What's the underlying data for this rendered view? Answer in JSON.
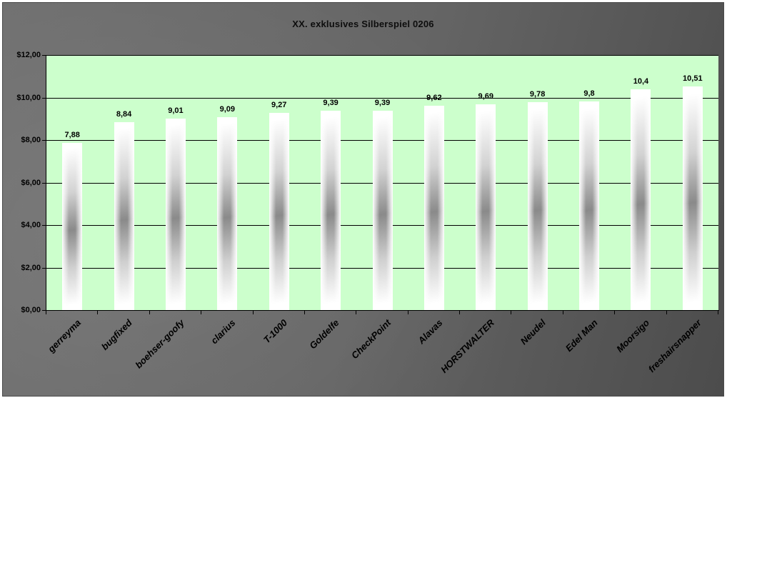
{
  "page": {
    "background": "#ffffff"
  },
  "chart_data": {
    "type": "bar",
    "title": "XX. exklusives Silberspiel 0206",
    "categories": [
      "gerreyma",
      "bugfixed",
      "boehser-goofy",
      "clarius",
      "T-1000",
      "Goldelfe",
      "CheckPoint",
      "Alavas",
      "HORSTWALTER",
      "Neudel",
      "Edel Man",
      "Moorsigo",
      "freshairsnapper"
    ],
    "values": [
      7.88,
      8.84,
      9.01,
      9.09,
      9.27,
      9.39,
      9.39,
      9.62,
      9.69,
      9.78,
      9.8,
      10.4,
      10.51
    ],
    "value_labels": [
      "7,88",
      "8,84",
      "9,01",
      "9,09",
      "9,27",
      "9,39",
      "9,39",
      "9,62",
      "9,69",
      "9,78",
      "9,8",
      "10,4",
      "10,51"
    ],
    "xlabel": "",
    "ylabel": "",
    "ylim": [
      0,
      12
    ],
    "ytick_step": 2,
    "yticks": [
      {
        "value": 0,
        "label": "$0,00"
      },
      {
        "value": 2,
        "label": "$2,00"
      },
      {
        "value": 4,
        "label": "$4,00"
      },
      {
        "value": 6,
        "label": "$6,00"
      },
      {
        "value": 8,
        "label": "$8,00"
      },
      {
        "value": 10,
        "label": "$10,00"
      },
      {
        "value": 12,
        "label": "$12,00"
      }
    ],
    "grid": true,
    "legend": false,
    "x_labels_rotation_deg": -45,
    "colors": {
      "plot_bg": "#ccffcc",
      "axis": "#000000",
      "text": "#000000",
      "bar_center": "#8a8a8a",
      "chart_bg_light": "#6f6f6f",
      "chart_bg_dark": "#4c4c4c"
    }
  }
}
